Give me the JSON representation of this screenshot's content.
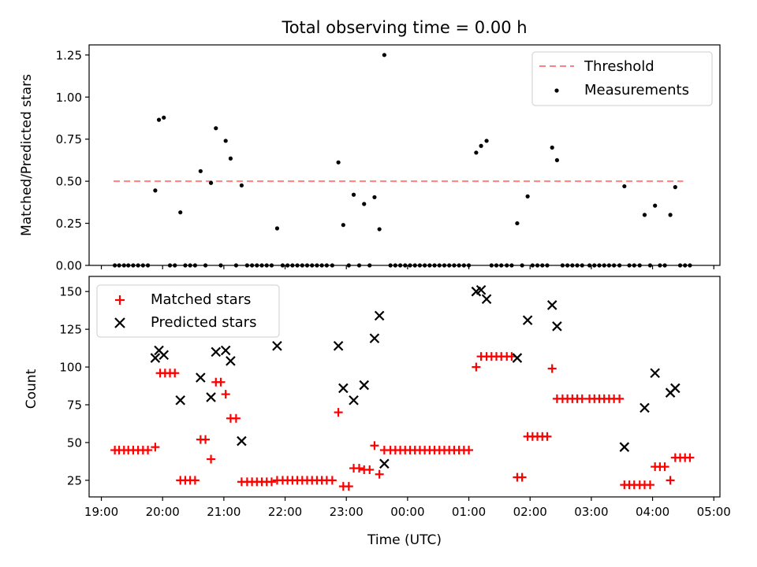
{
  "figure": {
    "title": "Total observing time = 0.00 h",
    "xlabel": "Time (UTC)"
  },
  "chart_data": [
    {
      "type": "scatter",
      "panel": "top",
      "title": "Total observing time = 0.00 h",
      "xlabel": "",
      "ylabel": "Matched/Predicted stars",
      "xlim": [
        18.8,
        29.1
      ],
      "ylim": [
        0,
        1.31
      ],
      "yticks": [
        0,
        0.25,
        0.5,
        0.75,
        1.0,
        1.25
      ],
      "yticklabels": [
        "0.00",
        "0.25",
        "0.50",
        "0.75",
        "1.00",
        "1.25"
      ],
      "xticks": [
        19,
        20,
        21,
        22,
        23,
        24,
        25,
        26,
        27,
        28,
        29
      ],
      "xticklabels": [],
      "grid": false,
      "legend_position": "top-right",
      "threshold": {
        "name": "Threshold",
        "y": 0.5,
        "x": [
          19.2,
          28.5
        ],
        "color": "#ff8080",
        "style": "dashed"
      },
      "series": [
        {
          "name": "Measurements",
          "color": "#000000",
          "marker": "dot",
          "points": [
            [
              19.22,
              0
            ],
            [
              19.29,
              0
            ],
            [
              19.37,
              0
            ],
            [
              19.44,
              0
            ],
            [
              19.52,
              0
            ],
            [
              19.6,
              0
            ],
            [
              19.68,
              0
            ],
            [
              19.76,
              0
            ],
            [
              19.88,
              0.445
            ],
            [
              19.94,
              0.865
            ],
            [
              20.02,
              0.878
            ],
            [
              20.12,
              0
            ],
            [
              20.2,
              0
            ],
            [
              20.29,
              0.315
            ],
            [
              20.37,
              0
            ],
            [
              20.45,
              0
            ],
            [
              20.53,
              0
            ],
            [
              20.62,
              0.56
            ],
            [
              20.7,
              0
            ],
            [
              20.79,
              0.49
            ],
            [
              20.87,
              0.815
            ],
            [
              20.95,
              0
            ],
            [
              21.03,
              0.74
            ],
            [
              21.11,
              0.635
            ],
            [
              21.2,
              0
            ],
            [
              21.29,
              0.475
            ],
            [
              21.38,
              0
            ],
            [
              21.46,
              0
            ],
            [
              21.54,
              0
            ],
            [
              21.62,
              0
            ],
            [
              21.7,
              0
            ],
            [
              21.78,
              0
            ],
            [
              21.87,
              0.22
            ],
            [
              21.96,
              0
            ],
            [
              22.04,
              0
            ],
            [
              22.12,
              0
            ],
            [
              22.2,
              0
            ],
            [
              22.28,
              0
            ],
            [
              22.36,
              0
            ],
            [
              22.44,
              0
            ],
            [
              22.52,
              0
            ],
            [
              22.6,
              0
            ],
            [
              22.68,
              0
            ],
            [
              22.77,
              0
            ],
            [
              22.87,
              0.612
            ],
            [
              22.95,
              0.24
            ],
            [
              23.04,
              0
            ],
            [
              23.12,
              0.42
            ],
            [
              23.21,
              0
            ],
            [
              23.29,
              0.365
            ],
            [
              23.38,
              0
            ],
            [
              23.46,
              0.405
            ],
            [
              23.54,
              0.215
            ],
            [
              23.62,
              1.25
            ],
            [
              23.72,
              0
            ],
            [
              23.8,
              0
            ],
            [
              23.88,
              0
            ],
            [
              23.96,
              0
            ],
            [
              24.04,
              0
            ],
            [
              24.12,
              0
            ],
            [
              24.2,
              0
            ],
            [
              24.28,
              0
            ],
            [
              24.36,
              0
            ],
            [
              24.44,
              0
            ],
            [
              24.52,
              0
            ],
            [
              24.6,
              0
            ],
            [
              24.68,
              0
            ],
            [
              24.76,
              0
            ],
            [
              24.84,
              0
            ],
            [
              24.92,
              0
            ],
            [
              25.0,
              0
            ],
            [
              25.12,
              0.67
            ],
            [
              25.2,
              0.71
            ],
            [
              25.29,
              0.74
            ],
            [
              25.37,
              0
            ],
            [
              25.45,
              0
            ],
            [
              25.53,
              0
            ],
            [
              25.62,
              0
            ],
            [
              25.7,
              0
            ],
            [
              25.79,
              0.25
            ],
            [
              25.87,
              0
            ],
            [
              25.96,
              0.41
            ],
            [
              26.04,
              0
            ],
            [
              26.12,
              0
            ],
            [
              26.2,
              0
            ],
            [
              26.28,
              0
            ],
            [
              26.36,
              0.7
            ],
            [
              26.44,
              0.625
            ],
            [
              26.53,
              0
            ],
            [
              26.61,
              0
            ],
            [
              26.69,
              0
            ],
            [
              26.77,
              0
            ],
            [
              26.85,
              0
            ],
            [
              26.97,
              0
            ],
            [
              27.05,
              0
            ],
            [
              27.13,
              0
            ],
            [
              27.21,
              0
            ],
            [
              27.29,
              0
            ],
            [
              27.37,
              0
            ],
            [
              27.46,
              0
            ],
            [
              27.54,
              0.47
            ],
            [
              27.62,
              0
            ],
            [
              27.7,
              0
            ],
            [
              27.79,
              0
            ],
            [
              27.87,
              0.3
            ],
            [
              27.96,
              0
            ],
            [
              28.04,
              0.355
            ],
            [
              28.12,
              0
            ],
            [
              28.2,
              0
            ],
            [
              28.29,
              0.3
            ],
            [
              28.37,
              0.465
            ],
            [
              28.45,
              0
            ],
            [
              28.53,
              0
            ],
            [
              28.61,
              0
            ]
          ]
        }
      ]
    },
    {
      "type": "scatter",
      "panel": "bottom",
      "xlabel": "Time (UTC)",
      "ylabel": "Count",
      "xlim": [
        18.8,
        29.1
      ],
      "ylim": [
        14,
        160
      ],
      "yticks": [
        25,
        50,
        75,
        100,
        125,
        150
      ],
      "yticklabels": [
        "25",
        "50",
        "75",
        "100",
        "125",
        "150"
      ],
      "xticks": [
        19,
        20,
        21,
        22,
        23,
        24,
        25,
        26,
        27,
        28,
        29
      ],
      "xticklabels": [
        "19:00",
        "20:00",
        "21:00",
        "22:00",
        "23:00",
        "00:00",
        "01:00",
        "02:00",
        "03:00",
        "04:00",
        "05:00"
      ],
      "grid": false,
      "legend_position": "top-left",
      "series": [
        {
          "name": "Matched stars",
          "color": "#ff0000",
          "marker": "plus",
          "points": [
            [
              19.22,
              45
            ],
            [
              19.29,
              45
            ],
            [
              19.37,
              45
            ],
            [
              19.44,
              45
            ],
            [
              19.52,
              45
            ],
            [
              19.6,
              45
            ],
            [
              19.68,
              45
            ],
            [
              19.76,
              45
            ],
            [
              19.88,
              47
            ],
            [
              19.96,
              96
            ],
            [
              20.04,
              96
            ],
            [
              20.12,
              96
            ],
            [
              20.2,
              96
            ],
            [
              20.29,
              25
            ],
            [
              20.37,
              25
            ],
            [
              20.45,
              25
            ],
            [
              20.53,
              25
            ],
            [
              20.62,
              52
            ],
            [
              20.7,
              52
            ],
            [
              20.79,
              39
            ],
            [
              20.87,
              90
            ],
            [
              20.95,
              90
            ],
            [
              21.03,
              82
            ],
            [
              21.11,
              66
            ],
            [
              21.2,
              66
            ],
            [
              21.29,
              24
            ],
            [
              21.38,
              24
            ],
            [
              21.46,
              24
            ],
            [
              21.54,
              24
            ],
            [
              21.62,
              24
            ],
            [
              21.7,
              24
            ],
            [
              21.78,
              24
            ],
            [
              21.87,
              25
            ],
            [
              21.96,
              25
            ],
            [
              22.04,
              25
            ],
            [
              22.12,
              25
            ],
            [
              22.2,
              25
            ],
            [
              22.28,
              25
            ],
            [
              22.36,
              25
            ],
            [
              22.44,
              25
            ],
            [
              22.52,
              25
            ],
            [
              22.6,
              25
            ],
            [
              22.68,
              25
            ],
            [
              22.77,
              25
            ],
            [
              22.87,
              70
            ],
            [
              22.95,
              21
            ],
            [
              23.04,
              21
            ],
            [
              23.12,
              33
            ],
            [
              23.21,
              33
            ],
            [
              23.29,
              32
            ],
            [
              23.38,
              32
            ],
            [
              23.46,
              48
            ],
            [
              23.54,
              29
            ],
            [
              23.62,
              45
            ],
            [
              23.72,
              45
            ],
            [
              23.8,
              45
            ],
            [
              23.88,
              45
            ],
            [
              23.96,
              45
            ],
            [
              24.04,
              45
            ],
            [
              24.12,
              45
            ],
            [
              24.2,
              45
            ],
            [
              24.28,
              45
            ],
            [
              24.36,
              45
            ],
            [
              24.44,
              45
            ],
            [
              24.52,
              45
            ],
            [
              24.6,
              45
            ],
            [
              24.68,
              45
            ],
            [
              24.76,
              45
            ],
            [
              24.84,
              45
            ],
            [
              24.92,
              45
            ],
            [
              25.0,
              45
            ],
            [
              25.12,
              100
            ],
            [
              25.2,
              107
            ],
            [
              25.29,
              107
            ],
            [
              25.37,
              107
            ],
            [
              25.45,
              107
            ],
            [
              25.53,
              107
            ],
            [
              25.62,
              107
            ],
            [
              25.7,
              107
            ],
            [
              25.79,
              27
            ],
            [
              25.87,
              27
            ],
            [
              25.96,
              54
            ],
            [
              26.04,
              54
            ],
            [
              26.12,
              54
            ],
            [
              26.2,
              54
            ],
            [
              26.28,
              54
            ],
            [
              26.36,
              99
            ],
            [
              26.44,
              79
            ],
            [
              26.53,
              79
            ],
            [
              26.61,
              79
            ],
            [
              26.69,
              79
            ],
            [
              26.77,
              79
            ],
            [
              26.85,
              79
            ],
            [
              26.97,
              79
            ],
            [
              27.05,
              79
            ],
            [
              27.13,
              79
            ],
            [
              27.21,
              79
            ],
            [
              27.29,
              79
            ],
            [
              27.37,
              79
            ],
            [
              27.46,
              79
            ],
            [
              27.54,
              22
            ],
            [
              27.62,
              22
            ],
            [
              27.7,
              22
            ],
            [
              27.79,
              22
            ],
            [
              27.87,
              22
            ],
            [
              27.96,
              22
            ],
            [
              28.04,
              34
            ],
            [
              28.12,
              34
            ],
            [
              28.2,
              34
            ],
            [
              28.29,
              25
            ],
            [
              28.37,
              40
            ],
            [
              28.45,
              40
            ],
            [
              28.53,
              40
            ],
            [
              28.61,
              40
            ]
          ]
        },
        {
          "name": "Predicted stars",
          "color": "#000000",
          "marker": "cross",
          "points": [
            [
              19.88,
              106
            ],
            [
              19.94,
              111
            ],
            [
              20.02,
              108
            ],
            [
              20.29,
              78
            ],
            [
              20.62,
              93
            ],
            [
              20.79,
              80
            ],
            [
              20.87,
              110
            ],
            [
              21.03,
              111
            ],
            [
              21.11,
              104
            ],
            [
              21.29,
              51
            ],
            [
              21.87,
              114
            ],
            [
              22.87,
              114
            ],
            [
              22.95,
              86
            ],
            [
              23.12,
              78
            ],
            [
              23.29,
              88
            ],
            [
              23.46,
              119
            ],
            [
              23.54,
              134
            ],
            [
              23.62,
              36
            ],
            [
              25.12,
              150
            ],
            [
              25.2,
              151
            ],
            [
              25.29,
              145
            ],
            [
              25.79,
              106
            ],
            [
              25.96,
              131
            ],
            [
              26.36,
              141
            ],
            [
              26.44,
              127
            ],
            [
              27.54,
              47
            ],
            [
              27.87,
              73
            ],
            [
              28.04,
              96
            ],
            [
              28.29,
              83
            ],
            [
              28.37,
              86
            ]
          ]
        }
      ]
    }
  ]
}
